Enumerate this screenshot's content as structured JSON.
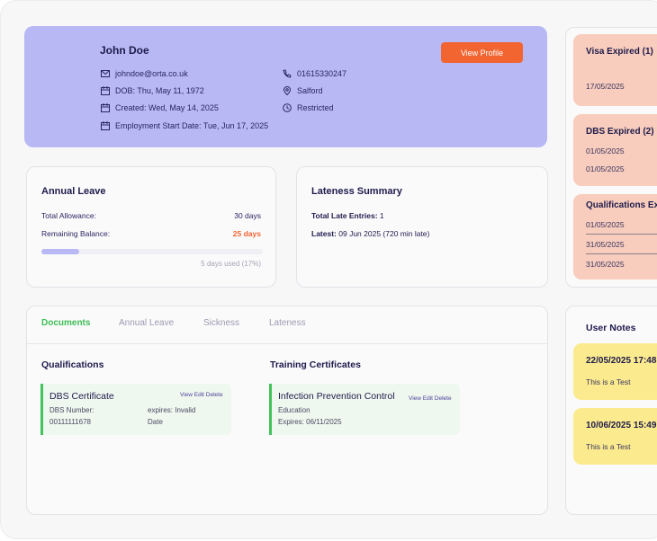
{
  "profile": {
    "name": "John Doe",
    "email": "johndoe@orta.co.uk",
    "dob": "DOB: Thu, May 11, 1972",
    "created": "Created: Wed, May 14, 2025",
    "employment_start": "Employment Start Date: Tue, Jun 17, 2025",
    "phone": "01615330247",
    "location": "Salford",
    "status": "Restricted",
    "view_profile_label": "View Profile",
    "color": "#b8b8f5"
  },
  "annual_leave": {
    "title": "Annual Leave",
    "total_label": "Total Allowance:",
    "total_value": "30 days",
    "remaining_label": "Remaining Balance:",
    "remaining_value": "25 days",
    "used_text": "5 days used (17%)",
    "used_percent": 17
  },
  "lateness": {
    "title": "Lateness Summary",
    "total_label": "Total Late Entries:",
    "total_value": "1",
    "latest_label": "Latest:",
    "latest_value": "09 Jun 2025 (720 min late)"
  },
  "tabs": [
    {
      "label": "Documents",
      "active": true
    },
    {
      "label": "Annual Leave"
    },
    {
      "label": "Sickness"
    },
    {
      "label": "Lateness"
    }
  ],
  "documents": {
    "qualifications_title": "Qualifications",
    "training_title": "Training Certificates",
    "qualification": {
      "title": "DBS Certificate",
      "actions": "View Edit Delete",
      "number_label": "DBS Number:",
      "number": "00111111678",
      "expires_line1": "expires: Invalid",
      "expires_line2": "Date"
    },
    "training": {
      "title": "Infection Prevention Control",
      "actions": "View Edit Delete",
      "category": "Education",
      "expires": "Expires: 06/11/2025"
    }
  },
  "alerts": [
    {
      "title": "Visa Expired (1)",
      "dates": [
        "17/05/2025"
      ]
    },
    {
      "title": "DBS Expired (2)",
      "dates": [
        "01/05/2025",
        "01/05/2025"
      ]
    },
    {
      "title": "Qualifications Expired",
      "dates": [
        "01/05/2025",
        "31/05/2025",
        "31/05/2025"
      ]
    }
  ],
  "notes": {
    "title": "User Notes",
    "items": [
      {
        "timestamp": "22/05/2025 17:48",
        "text": "This is a Test"
      },
      {
        "timestamp": "10/06/2025 15:49",
        "text": "This is a Test"
      }
    ]
  }
}
